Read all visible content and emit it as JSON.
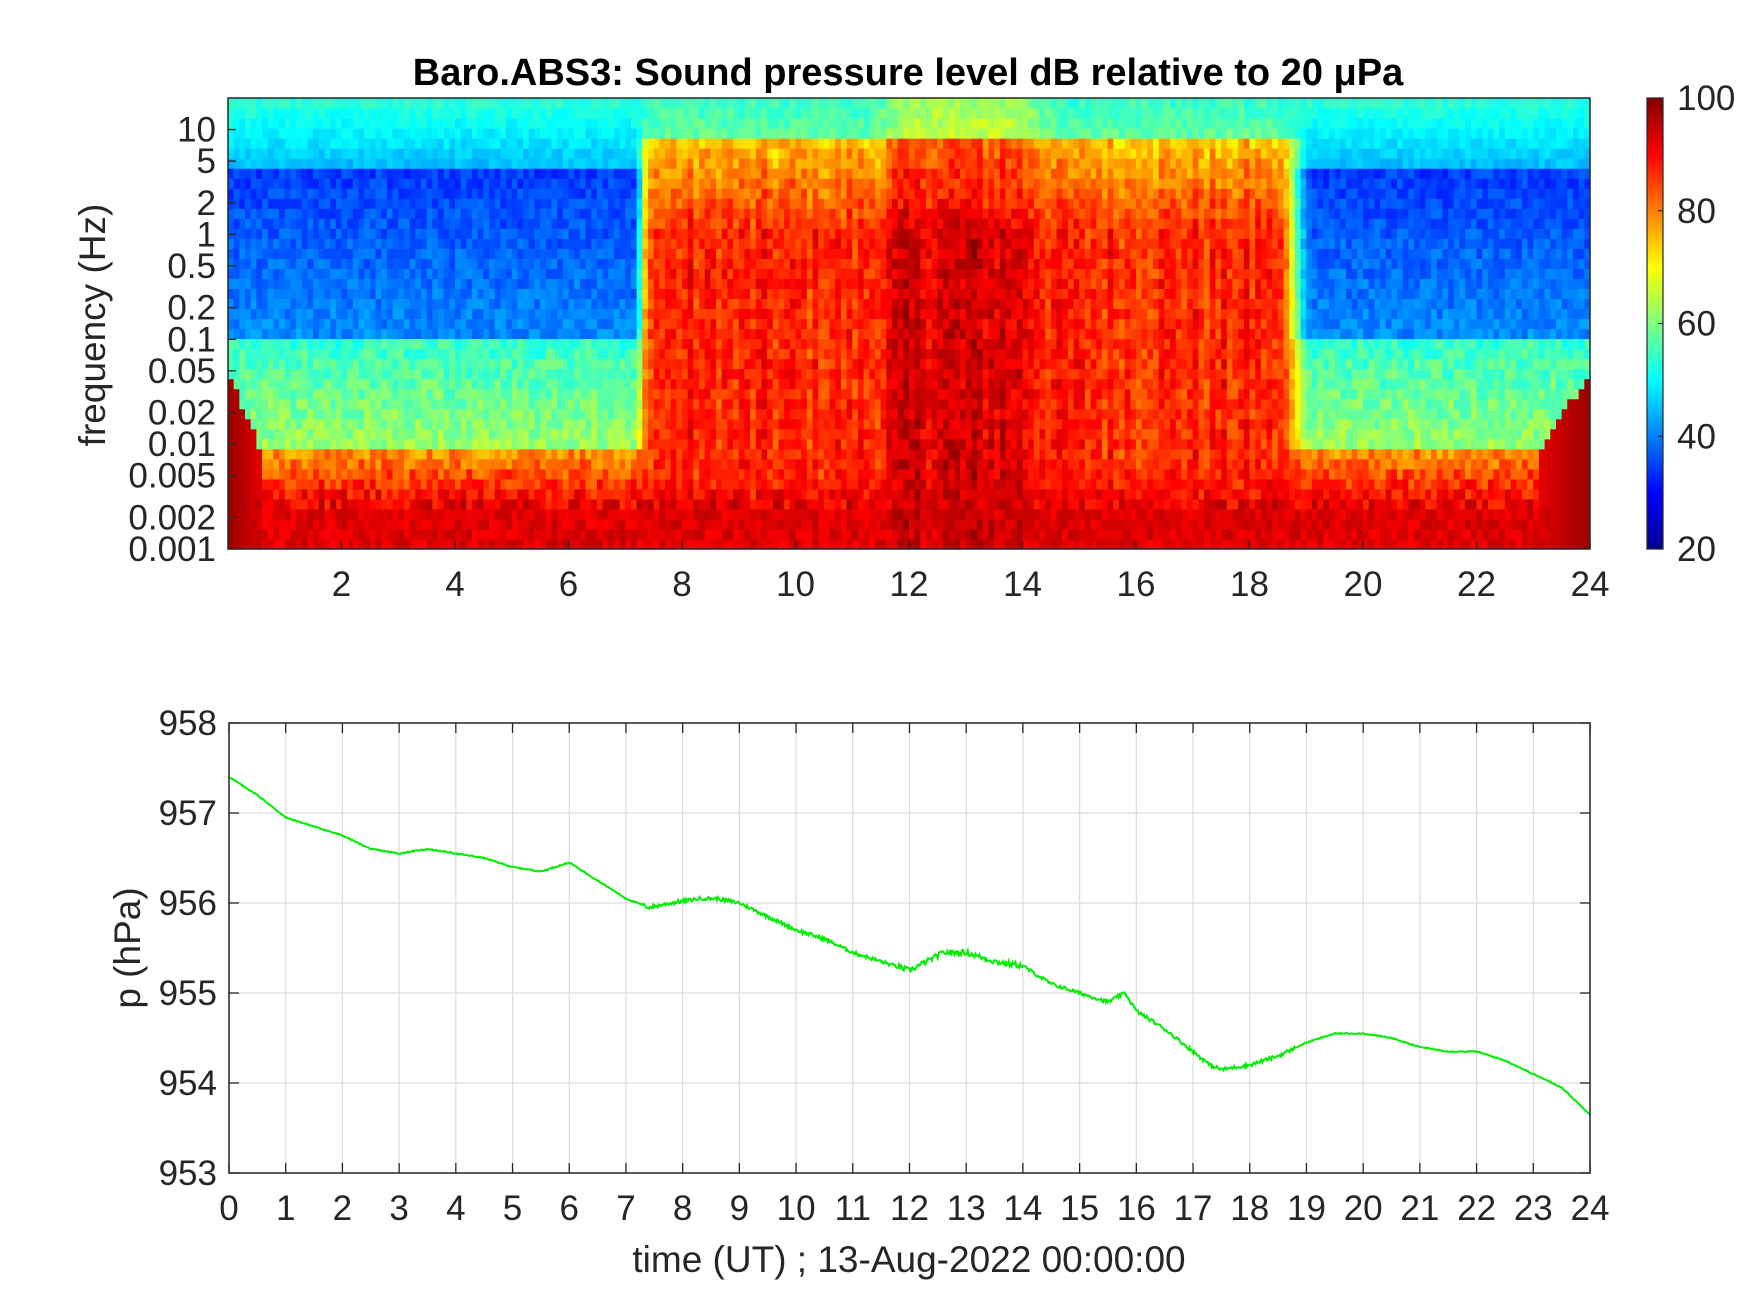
{
  "chart_data": [
    {
      "type": "heatmap",
      "title": "Baro.ABS3: Sound pressure level dB relative to 20 μPa",
      "xlabel": "",
      "ylabel": "frequency (Hz)",
      "xlim": [
        0,
        24
      ],
      "xticks": [
        "2",
        "4",
        "6",
        "8",
        "10",
        "12",
        "14",
        "16",
        "18",
        "20",
        "22",
        "24"
      ],
      "yscale": "log",
      "ylim": [
        0.001,
        20
      ],
      "yticks": [
        "10",
        "5",
        "2",
        "1",
        "0.5",
        "0.2",
        "0.1",
        "0.05",
        "0.02",
        "0.01",
        "0.005",
        "0.002",
        "0.001"
      ],
      "colormap": "jet",
      "clim": [
        20,
        100
      ],
      "colorbar_ticks": [
        "100",
        "80",
        "60",
        "40",
        "20"
      ],
      "active_period_hours": [
        7.3,
        18.8
      ],
      "peak_period_hours": [
        11.8,
        14.0
      ]
    },
    {
      "type": "line",
      "xlabel": "time (UT) ; 13-Aug-2022 00:00:00",
      "ylabel": "p (hPa)",
      "xlim": [
        0,
        24
      ],
      "ylim": [
        953,
        958
      ],
      "xticks": [
        "0",
        "1",
        "2",
        "3",
        "4",
        "5",
        "6",
        "7",
        "8",
        "9",
        "10",
        "11",
        "12",
        "13",
        "14",
        "15",
        "16",
        "17",
        "18",
        "19",
        "20",
        "21",
        "22",
        "23",
        "24"
      ],
      "yticks": [
        "958",
        "957",
        "956",
        "955",
        "954",
        "953"
      ],
      "grid": true,
      "color": "#00ee00",
      "series": [
        {
          "x": [
            0,
            0.5,
            1,
            1.5,
            2,
            2.5,
            3,
            3.5,
            4,
            4.5,
            5,
            5.5,
            6,
            6.5,
            7,
            7.4,
            7.8,
            8.3,
            8.6,
            9,
            9.5,
            10,
            10.5,
            11,
            11.5,
            12,
            12.3,
            12.6,
            13,
            13.5,
            14,
            14.5,
            15,
            15.5,
            15.8,
            16,
            16.5,
            17,
            17.3,
            17.5,
            18,
            18.5,
            19,
            19.5,
            20,
            20.5,
            21,
            21.5,
            22,
            22.5,
            23,
            23.5,
            24
          ],
          "y": [
            957.4,
            957.2,
            956.95,
            956.85,
            956.75,
            956.6,
            956.55,
            956.6,
            956.55,
            956.5,
            956.4,
            956.35,
            956.45,
            956.25,
            956.05,
            955.95,
            956.0,
            956.05,
            956.05,
            956.0,
            955.85,
            955.7,
            955.6,
            955.45,
            955.35,
            955.25,
            955.35,
            955.45,
            955.45,
            955.35,
            955.3,
            955.1,
            955.0,
            954.9,
            955.0,
            954.8,
            954.6,
            954.35,
            954.2,
            954.15,
            954.2,
            954.3,
            954.45,
            954.55,
            954.55,
            954.5,
            954.4,
            954.35,
            954.35,
            954.25,
            954.1,
            953.95,
            953.65
          ]
        }
      ]
    }
  ]
}
